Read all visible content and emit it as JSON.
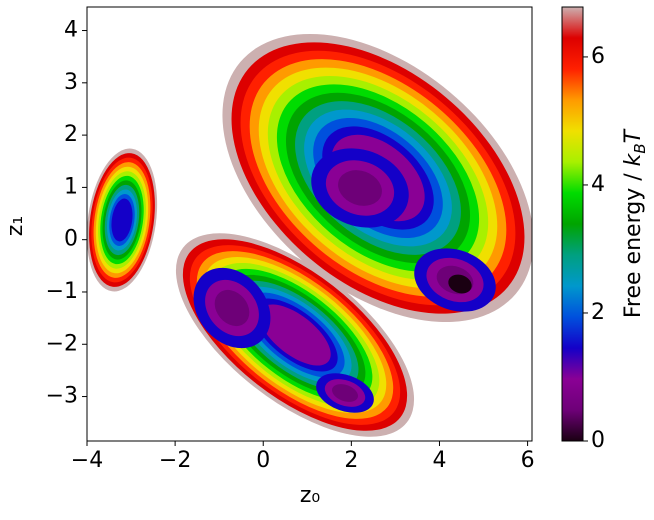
{
  "chart_data": {
    "type": "contour",
    "xlabel": "z₀",
    "ylabel": "z₁",
    "colorbar_label": [
      "Free energy / ",
      "k",
      "B",
      "T"
    ],
    "xlim": [
      -4,
      6.1
    ],
    "ylim": [
      -3.85,
      4.45
    ],
    "xticks": [
      {
        "value": -4,
        "label": "−4"
      },
      {
        "value": -2,
        "label": "−2"
      },
      0,
      2,
      4,
      6
    ],
    "yticks": [
      {
        "value": -3,
        "label": "−3"
      },
      {
        "value": -2,
        "label": "−2"
      },
      {
        "value": -1,
        "label": "−1"
      },
      0,
      1,
      2,
      3,
      4
    ],
    "clim": [
      0,
      6.78
    ],
    "cticks": [
      0,
      2,
      4,
      6
    ],
    "colormap": [
      "#1a0012",
      "#6e0078",
      "#8a0095",
      "#1400c8",
      "#0050dd",
      "#0098cc",
      "#00a080",
      "#00a400",
      "#00dc00",
      "#a8f000",
      "#f0e000",
      "#ff9a00",
      "#ff2000",
      "#dd0000",
      "#ccb0b0"
    ]
  }
}
